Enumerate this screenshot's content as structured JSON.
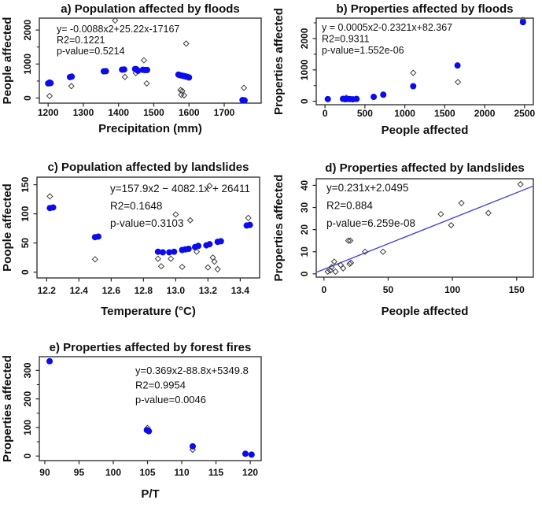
{
  "figure": {
    "description": "Five scatter plots of disaster impacts with fitted regression annotations",
    "colors": {
      "point_blue": "#0b0bee",
      "diamond_stroke": "#3c3c3c",
      "trendline": "#4949e0",
      "axis": "#262626",
      "text": "#111111",
      "background": "#ffffff"
    }
  },
  "chart_data": [
    {
      "id": "a",
      "type": "scatter",
      "title": "a) Population affected by floods",
      "xlabel": "Precipitation (mm)",
      "ylabel": "People affected",
      "xlim": [
        1175,
        1805
      ],
      "ylim": [
        -150,
        2350
      ],
      "xticks": [
        1200,
        1300,
        1400,
        1500,
        1600,
        1700
      ],
      "xtick_labels": [
        "1200",
        "1300",
        "1400",
        "1500",
        "1600",
        "1700"
      ],
      "yticks": [
        0,
        1000,
        2000
      ],
      "ytick_labels": [
        "0",
        "1000",
        "2000"
      ],
      "yticks_minor": [
        500,
        1500
      ],
      "annotation": [
        "y= -0.0088x2+25.22x-17167",
        "R2=0.1221",
        "p-value=0.5214"
      ],
      "points_blue": [
        [
          1200,
          430
        ],
        [
          1204,
          455
        ],
        [
          1207,
          440
        ],
        [
          1262,
          615
        ],
        [
          1267,
          630
        ],
        [
          1358,
          785
        ],
        [
          1364,
          790
        ],
        [
          1410,
          835
        ],
        [
          1416,
          840
        ],
        [
          1447,
          855
        ],
        [
          1451,
          845
        ],
        [
          1455,
          800
        ],
        [
          1469,
          830
        ],
        [
          1475,
          822
        ],
        [
          1481,
          825
        ],
        [
          1570,
          690
        ],
        [
          1575,
          672
        ],
        [
          1580,
          660
        ],
        [
          1585,
          648
        ],
        [
          1590,
          636
        ],
        [
          1595,
          622
        ],
        [
          1600,
          605
        ],
        [
          1752,
          -60
        ],
        [
          1758,
          -70
        ]
      ],
      "points_diamond": [
        [
          1204,
          60
        ],
        [
          1266,
          350
        ],
        [
          1390,
          2280
        ],
        [
          1418,
          620
        ],
        [
          1449,
          735
        ],
        [
          1472,
          1110
        ],
        [
          1480,
          430
        ],
        [
          1576,
          235
        ],
        [
          1581,
          210
        ],
        [
          1578,
          95
        ],
        [
          1586,
          82
        ],
        [
          1592,
          1600
        ],
        [
          1756,
          300
        ]
      ]
    },
    {
      "id": "b",
      "type": "scatter",
      "title": "b) Properties affected by floods",
      "xlabel": "People affected",
      "ylabel": "Properties affected",
      "xlim": [
        -110,
        2610
      ],
      "ylim": [
        -110,
        2650
      ],
      "xticks": [
        0,
        500,
        1000,
        1500,
        2000,
        2500
      ],
      "xtick_labels": [
        "0",
        "500",
        "1000",
        "1500",
        "2000",
        "2500"
      ],
      "yticks": [
        0,
        1000,
        2000
      ],
      "ytick_labels": [
        "0",
        "1000",
        "2000"
      ],
      "yticks_minor": [
        500,
        1500,
        2500
      ],
      "annotation": [
        "y = 0.0005x2-0.2321x+82.367",
        "R2=0.9311",
        "p-value=1.552e-06"
      ],
      "points_blue": [
        [
          35,
          70
        ],
        [
          225,
          78
        ],
        [
          255,
          65
        ],
        [
          285,
          75
        ],
        [
          315,
          70
        ],
        [
          350,
          64
        ],
        [
          395,
          75
        ],
        [
          610,
          140
        ],
        [
          730,
          210
        ],
        [
          1105,
          480
        ],
        [
          1660,
          1140
        ],
        [
          2480,
          2520
        ]
      ],
      "points_diamond": [
        [
          265,
          115
        ],
        [
          1105,
          905
        ],
        [
          1665,
          610
        ],
        [
          2480,
          2590
        ]
      ]
    },
    {
      "id": "c",
      "type": "scatter",
      "title": "c) Population affected by landslides",
      "xlabel": "Temperature (°C)",
      "ylabel": "Poople affected",
      "xlim": [
        12.14,
        13.52
      ],
      "ylim": [
        -10,
        163
      ],
      "xticks": [
        12.2,
        12.4,
        12.6,
        12.8,
        13.0,
        13.2,
        13.4
      ],
      "xtick_labels": [
        "12.2",
        "12.4",
        "12.6",
        "12.8",
        "13.0",
        "13.2",
        "13.4"
      ],
      "yticks": [
        0,
        50,
        100,
        150
      ],
      "ytick_labels": [
        "0",
        "50",
        "100",
        "150"
      ],
      "yticks_minor": [],
      "annotation": [
        "y=157.9x2 − 4082.1x + 26411",
        "R2=0.1648",
        "p-value=0.3103"
      ],
      "points_blue": [
        [
          12.22,
          110
        ],
        [
          12.24,
          111
        ],
        [
          12.5,
          60
        ],
        [
          12.52,
          61
        ],
        [
          12.89,
          35
        ],
        [
          12.92,
          34
        ],
        [
          12.96,
          34
        ],
        [
          12.99,
          35
        ],
        [
          13.04,
          38
        ],
        [
          13.06,
          39
        ],
        [
          13.08,
          40
        ],
        [
          13.12,
          43
        ],
        [
          13.14,
          45
        ],
        [
          13.19,
          46
        ],
        [
          13.21,
          48
        ],
        [
          13.26,
          52
        ],
        [
          13.28,
          53
        ],
        [
          13.44,
          80
        ],
        [
          13.46,
          81
        ]
      ],
      "points_diamond": [
        [
          12.22,
          130
        ],
        [
          12.5,
          22
        ],
        [
          12.89,
          23
        ],
        [
          12.91,
          10
        ],
        [
          12.97,
          23
        ],
        [
          13.0,
          99
        ],
        [
          13.04,
          9
        ],
        [
          13.09,
          89
        ],
        [
          13.13,
          35
        ],
        [
          13.2,
          8
        ],
        [
          13.21,
          148
        ],
        [
          13.23,
          25
        ],
        [
          13.24,
          18
        ],
        [
          13.26,
          5
        ],
        [
          13.45,
          93
        ]
      ]
    },
    {
      "id": "d",
      "type": "scatter",
      "title": "d) Properties affected by landslides",
      "xlabel": "People affected",
      "ylabel": "Properties affected",
      "xlim": [
        -6,
        163
      ],
      "ylim": [
        -1.5,
        43
      ],
      "xticks": [
        0,
        50,
        100,
        150
      ],
      "xtick_labels": [
        "0",
        "50",
        "100",
        "150"
      ],
      "yticks": [
        0,
        10,
        20,
        30,
        40
      ],
      "ytick_labels": [
        "0",
        "10",
        "20",
        "30",
        "40"
      ],
      "yticks_minor": [],
      "annotation": [
        "y=0.231x+2.0495",
        "R2=0.884",
        "p-value=6.259e-08"
      ],
      "trendline": {
        "x1": -6,
        "y1": 0.66,
        "x2": 163,
        "y2": 39.7
      },
      "points_blue": [],
      "points_diamond": [
        [
          3,
          1
        ],
        [
          5,
          1.5
        ],
        [
          6,
          3
        ],
        [
          8,
          5.5
        ],
        [
          9,
          1
        ],
        [
          13,
          4
        ],
        [
          15,
          2.5
        ],
        [
          20,
          4.5
        ],
        [
          21,
          5
        ],
        [
          19,
          15
        ],
        [
          20.5,
          15
        ],
        [
          32,
          10
        ],
        [
          46,
          10
        ],
        [
          91,
          27
        ],
        [
          99,
          22
        ],
        [
          107,
          32
        ],
        [
          128,
          27.5
        ],
        [
          153,
          40.5
        ]
      ]
    },
    {
      "id": "e",
      "type": "scatter",
      "title": "e) Properties affected by forest fires",
      "xlabel": "P/T",
      "ylabel": "Properties affected",
      "xlim": [
        89.2,
        121.6
      ],
      "ylim": [
        -16,
        348
      ],
      "xticks": [
        90,
        95,
        100,
        105,
        110,
        115,
        120
      ],
      "xtick_labels": [
        "90",
        "95",
        "100",
        "105",
        "110",
        "115",
        "120"
      ],
      "yticks": [
        0,
        100,
        200,
        300
      ],
      "ytick_labels": [
        "0",
        "100",
        "200",
        "300"
      ],
      "yticks_minor": [
        50,
        150,
        250
      ],
      "annotation": [
        "y=0.369x2-88.8x+5349.8",
        "R2=0.9954",
        "p-value=0.0046"
      ],
      "points_blue": [
        [
          90.7,
          332
        ],
        [
          104.9,
          91
        ],
        [
          105.2,
          87
        ],
        [
          111.6,
          34
        ],
        [
          119.3,
          8
        ],
        [
          120.2,
          5
        ]
      ],
      "points_diamond": [
        [
          105.0,
          98
        ],
        [
          111.6,
          22
        ]
      ]
    }
  ]
}
